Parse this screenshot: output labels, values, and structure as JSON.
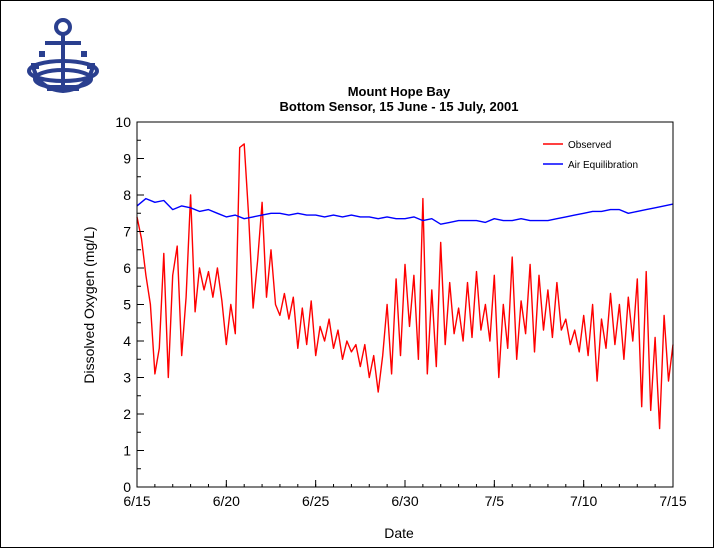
{
  "colors": {
    "observed": "#ff0000",
    "air_equilibration": "#0000ff",
    "logo": "#2a3f8f"
  },
  "logo": {
    "icon": "anchor-seal-icon"
  },
  "chart_data": {
    "type": "line",
    "title": "Mount Hope Bay",
    "subtitle": "Bottom Sensor, 15 June - 15 July, 2001",
    "xlabel": "Date",
    "ylabel": "Dissolved Oxygen (mg/L)",
    "x_ticks": [
      "6/15",
      "6/20",
      "6/25",
      "6/30",
      "7/5",
      "7/10",
      "7/15"
    ],
    "y_ticks": [
      "0",
      "1",
      "2",
      "3",
      "4",
      "5",
      "6",
      "7",
      "8",
      "9",
      "10"
    ],
    "xlim": [
      "6/15",
      "7/15"
    ],
    "ylim": [
      0,
      10
    ],
    "grid": false,
    "legend_position": "top-right",
    "series": [
      {
        "name": "Observed",
        "color": "#ff0000",
        "points": [
          [
            "6/15 00:00",
            7.4
          ],
          [
            "6/15 06:00",
            6.8
          ],
          [
            "6/15 12:00",
            5.8
          ],
          [
            "6/15 18:00",
            5.0
          ],
          [
            "6/16 00:00",
            3.1
          ],
          [
            "6/16 06:00",
            3.8
          ],
          [
            "6/16 12:00",
            6.4
          ],
          [
            "6/16 18:00",
            3.0
          ],
          [
            "6/17 00:00",
            5.8
          ],
          [
            "6/17 06:00",
            6.6
          ],
          [
            "6/17 12:00",
            3.6
          ],
          [
            "6/17 18:00",
            5.2
          ],
          [
            "6/18 00:00",
            8.0
          ],
          [
            "6/18 06:00",
            4.8
          ],
          [
            "6/18 12:00",
            6.0
          ],
          [
            "6/18 18:00",
            5.4
          ],
          [
            "6/19 00:00",
            5.9
          ],
          [
            "6/19 06:00",
            5.2
          ],
          [
            "6/19 12:00",
            6.0
          ],
          [
            "6/19 18:00",
            5.1
          ],
          [
            "6/20 00:00",
            3.9
          ],
          [
            "6/20 06:00",
            5.0
          ],
          [
            "6/20 12:00",
            4.2
          ],
          [
            "6/20 18:00",
            9.3
          ],
          [
            "6/21 00:00",
            9.4
          ],
          [
            "6/21 06:00",
            7.4
          ],
          [
            "6/21 12:00",
            4.9
          ],
          [
            "6/21 18:00",
            6.2
          ],
          [
            "6/22 00:00",
            7.8
          ],
          [
            "6/22 06:00",
            5.2
          ],
          [
            "6/22 12:00",
            6.5
          ],
          [
            "6/22 18:00",
            5.0
          ],
          [
            "6/23 00:00",
            4.7
          ],
          [
            "6/23 06:00",
            5.3
          ],
          [
            "6/23 12:00",
            4.6
          ],
          [
            "6/23 18:00",
            5.2
          ],
          [
            "6/24 00:00",
            3.8
          ],
          [
            "6/24 06:00",
            4.9
          ],
          [
            "6/24 12:00",
            3.9
          ],
          [
            "6/24 18:00",
            5.1
          ],
          [
            "6/25 00:00",
            3.6
          ],
          [
            "6/25 06:00",
            4.4
          ],
          [
            "6/25 12:00",
            4.0
          ],
          [
            "6/25 18:00",
            4.6
          ],
          [
            "6/26 00:00",
            3.8
          ],
          [
            "6/26 06:00",
            4.3
          ],
          [
            "6/26 12:00",
            3.5
          ],
          [
            "6/26 18:00",
            4.0
          ],
          [
            "6/27 00:00",
            3.7
          ],
          [
            "6/27 06:00",
            3.9
          ],
          [
            "6/27 12:00",
            3.3
          ],
          [
            "6/27 18:00",
            3.9
          ],
          [
            "6/28 00:00",
            3.0
          ],
          [
            "6/28 06:00",
            3.6
          ],
          [
            "6/28 12:00",
            2.6
          ],
          [
            "6/28 18:00",
            3.6
          ],
          [
            "6/29 00:00",
            5.0
          ],
          [
            "6/29 06:00",
            3.1
          ],
          [
            "6/29 12:00",
            5.7
          ],
          [
            "6/29 18:00",
            3.6
          ],
          [
            "6/30 00:00",
            6.1
          ],
          [
            "6/30 06:00",
            4.4
          ],
          [
            "6/30 12:00",
            5.8
          ],
          [
            "6/30 18:00",
            3.5
          ],
          [
            "7/1 00:00",
            7.9
          ],
          [
            "7/1 06:00",
            3.1
          ],
          [
            "7/1 12:00",
            5.4
          ],
          [
            "7/1 18:00",
            3.3
          ],
          [
            "7/2 00:00",
            6.7
          ],
          [
            "7/2 06:00",
            3.9
          ],
          [
            "7/2 12:00",
            5.6
          ],
          [
            "7/2 18:00",
            4.2
          ],
          [
            "7/3 00:00",
            4.9
          ],
          [
            "7/3 06:00",
            4.0
          ],
          [
            "7/3 12:00",
            5.6
          ],
          [
            "7/3 18:00",
            4.1
          ],
          [
            "7/4 00:00",
            5.9
          ],
          [
            "7/4 06:00",
            4.3
          ],
          [
            "7/4 12:00",
            5.0
          ],
          [
            "7/4 18:00",
            4.0
          ],
          [
            "7/5 00:00",
            5.8
          ],
          [
            "7/5 06:00",
            3.0
          ],
          [
            "7/5 12:00",
            5.0
          ],
          [
            "7/5 18:00",
            3.8
          ],
          [
            "7/6 00:00",
            6.3
          ],
          [
            "7/6 06:00",
            3.5
          ],
          [
            "7/6 12:00",
            5.1
          ],
          [
            "7/6 18:00",
            4.2
          ],
          [
            "7/7 00:00",
            6.1
          ],
          [
            "7/7 06:00",
            3.7
          ],
          [
            "7/7 12:00",
            5.8
          ],
          [
            "7/7 18:00",
            4.3
          ],
          [
            "7/8 00:00",
            5.4
          ],
          [
            "7/8 06:00",
            4.1
          ],
          [
            "7/8 12:00",
            5.6
          ],
          [
            "7/8 18:00",
            4.3
          ],
          [
            "7/9 00:00",
            4.6
          ],
          [
            "7/9 06:00",
            3.9
          ],
          [
            "7/9 12:00",
            4.3
          ],
          [
            "7/9 18:00",
            3.7
          ],
          [
            "7/10 00:00",
            4.7
          ],
          [
            "7/10 06:00",
            3.6
          ],
          [
            "7/10 12:00",
            5.0
          ],
          [
            "7/10 18:00",
            2.9
          ],
          [
            "7/11 00:00",
            4.6
          ],
          [
            "7/11 06:00",
            3.8
          ],
          [
            "7/11 12:00",
            5.3
          ],
          [
            "7/11 18:00",
            3.9
          ],
          [
            "7/12 00:00",
            5.0
          ],
          [
            "7/12 06:00",
            3.5
          ],
          [
            "7/12 12:00",
            5.2
          ],
          [
            "7/12 18:00",
            4.0
          ],
          [
            "7/13 00:00",
            5.7
          ],
          [
            "7/13 06:00",
            2.2
          ],
          [
            "7/13 12:00",
            5.9
          ],
          [
            "7/13 18:00",
            2.1
          ],
          [
            "7/14 00:00",
            4.1
          ],
          [
            "7/14 06:00",
            1.6
          ],
          [
            "7/14 12:00",
            4.7
          ],
          [
            "7/14 18:00",
            2.9
          ],
          [
            "7/15 00:00",
            3.9
          ]
        ]
      },
      {
        "name": "Air Equilibration",
        "color": "#0000ff",
        "points": [
          [
            "6/15 00:00",
            7.7
          ],
          [
            "6/15 12:00",
            7.9
          ],
          [
            "6/16 00:00",
            7.8
          ],
          [
            "6/16 12:00",
            7.85
          ],
          [
            "6/17 00:00",
            7.6
          ],
          [
            "6/17 12:00",
            7.7
          ],
          [
            "6/18 00:00",
            7.65
          ],
          [
            "6/18 12:00",
            7.55
          ],
          [
            "6/19 00:00",
            7.6
          ],
          [
            "6/19 12:00",
            7.5
          ],
          [
            "6/20 00:00",
            7.4
          ],
          [
            "6/20 12:00",
            7.45
          ],
          [
            "6/21 00:00",
            7.35
          ],
          [
            "6/21 12:00",
            7.4
          ],
          [
            "6/22 00:00",
            7.45
          ],
          [
            "6/22 12:00",
            7.5
          ],
          [
            "6/23 00:00",
            7.5
          ],
          [
            "6/23 12:00",
            7.45
          ],
          [
            "6/24 00:00",
            7.5
          ],
          [
            "6/24 12:00",
            7.45
          ],
          [
            "6/25 00:00",
            7.45
          ],
          [
            "6/25 12:00",
            7.4
          ],
          [
            "6/26 00:00",
            7.45
          ],
          [
            "6/26 12:00",
            7.4
          ],
          [
            "6/27 00:00",
            7.45
          ],
          [
            "6/27 12:00",
            7.4
          ],
          [
            "6/28 00:00",
            7.4
          ],
          [
            "6/28 12:00",
            7.35
          ],
          [
            "6/29 00:00",
            7.4
          ],
          [
            "6/29 12:00",
            7.35
          ],
          [
            "6/30 00:00",
            7.35
          ],
          [
            "6/30 12:00",
            7.4
          ],
          [
            "7/1 00:00",
            7.3
          ],
          [
            "7/1 12:00",
            7.35
          ],
          [
            "7/2 00:00",
            7.2
          ],
          [
            "7/2 12:00",
            7.25
          ],
          [
            "7/3 00:00",
            7.3
          ],
          [
            "7/3 12:00",
            7.3
          ],
          [
            "7/4 00:00",
            7.3
          ],
          [
            "7/4 12:00",
            7.25
          ],
          [
            "7/5 00:00",
            7.35
          ],
          [
            "7/5 12:00",
            7.3
          ],
          [
            "7/6 00:00",
            7.3
          ],
          [
            "7/6 12:00",
            7.35
          ],
          [
            "7/7 00:00",
            7.3
          ],
          [
            "7/7 12:00",
            7.3
          ],
          [
            "7/8 00:00",
            7.3
          ],
          [
            "7/8 12:00",
            7.35
          ],
          [
            "7/9 00:00",
            7.4
          ],
          [
            "7/9 12:00",
            7.45
          ],
          [
            "7/10 00:00",
            7.5
          ],
          [
            "7/10 12:00",
            7.55
          ],
          [
            "7/11 00:00",
            7.55
          ],
          [
            "7/11 12:00",
            7.6
          ],
          [
            "7/12 00:00",
            7.6
          ],
          [
            "7/12 12:00",
            7.5
          ],
          [
            "7/13 00:00",
            7.55
          ],
          [
            "7/13 12:00",
            7.6
          ],
          [
            "7/14 00:00",
            7.65
          ],
          [
            "7/14 12:00",
            7.7
          ],
          [
            "7/15 00:00",
            7.75
          ]
        ]
      }
    ]
  }
}
